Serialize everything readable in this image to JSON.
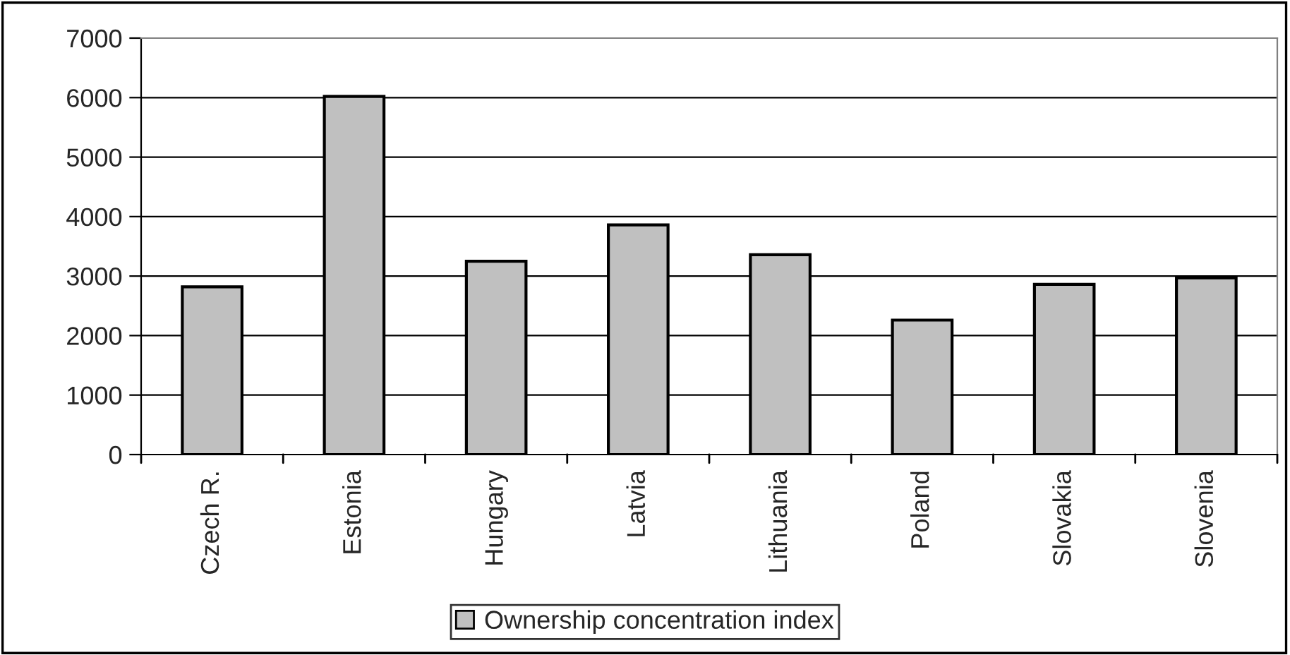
{
  "chart_data": {
    "type": "bar",
    "categories": [
      "Czech R.",
      "Estonia",
      "Hungary",
      "Latvia",
      "Lithuania",
      "Poland",
      "Slovakia",
      "Slovenia"
    ],
    "series": [
      {
        "name": "Ownership concentration index",
        "color": "#c0c0c0",
        "values": [
          2820,
          6020,
          3250,
          3860,
          3360,
          2260,
          2860,
          2970
        ]
      }
    ],
    "ylim": [
      0,
      7000
    ],
    "yticks": [
      0,
      1000,
      2000,
      3000,
      4000,
      5000,
      6000,
      7000
    ],
    "grid": "y",
    "legend": "bottom"
  }
}
